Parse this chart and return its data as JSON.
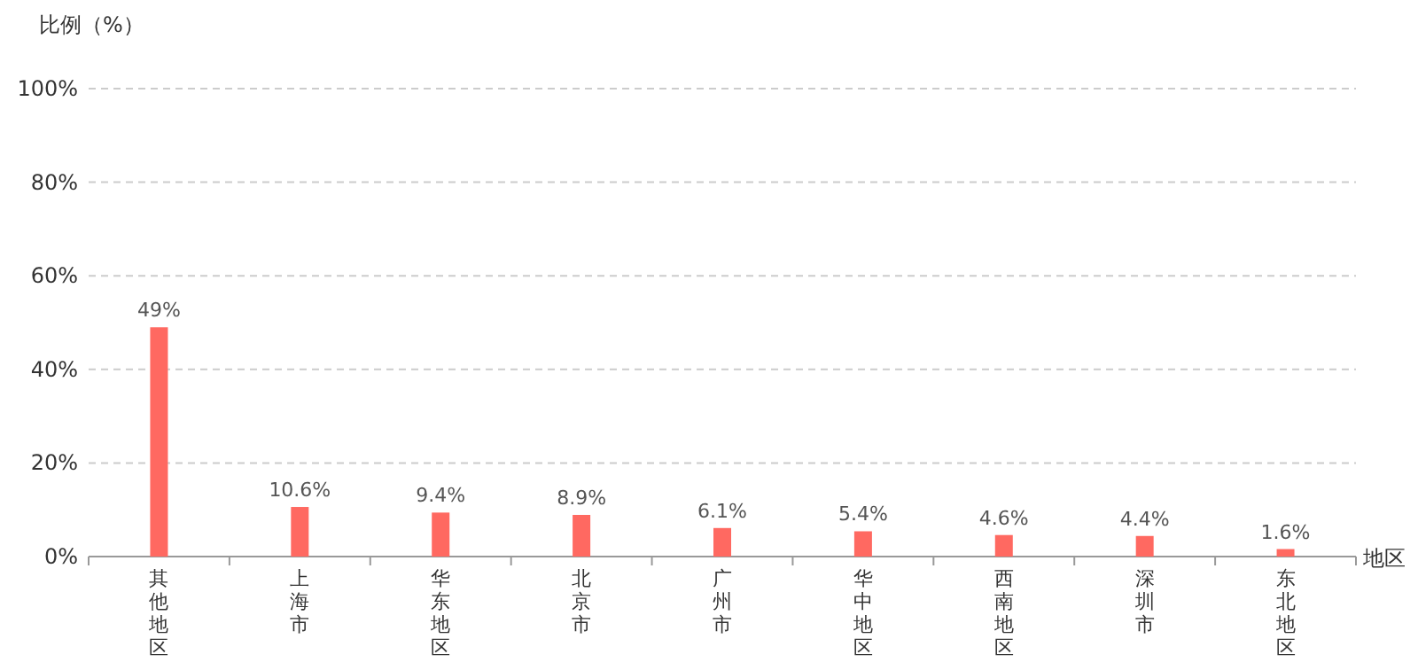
{
  "chart_data": {
    "type": "bar",
    "ylabel": "比例（%）",
    "xlabel": "地区",
    "categories": [
      "其他地区",
      "上海市",
      "华东地区",
      "北京市",
      "广州市",
      "华中地区",
      "西南地区",
      "深圳市",
      "东北地区"
    ],
    "values": [
      49,
      10.6,
      9.4,
      8.9,
      6.1,
      5.4,
      4.6,
      4.4,
      1.6
    ],
    "value_labels": [
      "49%",
      "10.6%",
      "9.4%",
      "8.9%",
      "6.1%",
      "5.4%",
      "4.6%",
      "4.4%",
      "1.6%"
    ],
    "color": "#ff6961",
    "ylim": [
      0,
      100
    ],
    "yticks": [
      {
        "value": 0,
        "label": "0%"
      },
      {
        "value": 20,
        "label": "20%"
      },
      {
        "value": 40,
        "label": "40%"
      },
      {
        "value": 60,
        "label": "60%"
      },
      {
        "value": 80,
        "label": "80%"
      },
      {
        "value": 100,
        "label": "100%"
      }
    ],
    "grid": "y"
  }
}
